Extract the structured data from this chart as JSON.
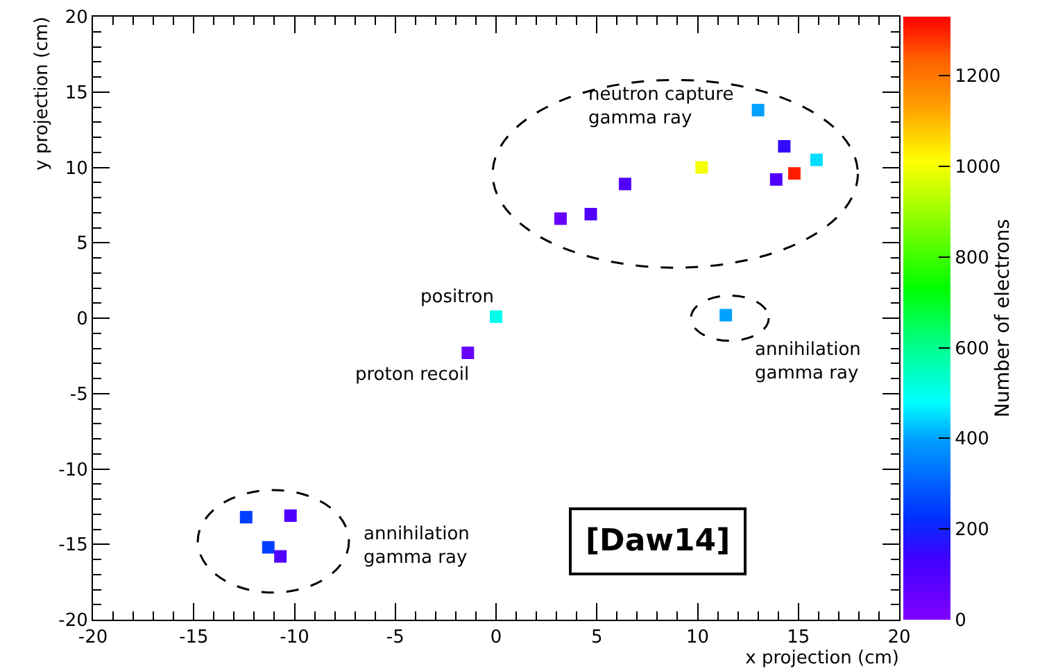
{
  "chart_data": {
    "type": "scatter",
    "xlabel": "x projection (cm)",
    "ylabel": "y projection (cm)",
    "clabel": "Number of electrons",
    "x": [
      0.0,
      -1.4,
      11.4,
      13.0,
      14.3,
      15.9,
      10.2,
      14.8,
      13.9,
      6.4,
      4.7,
      3.2,
      -12.4,
      -10.2,
      -11.3,
      -10.7
    ],
    "values": [
      0.1,
      -2.3,
      0.2,
      13.8,
      11.4,
      10.5,
      10.0,
      9.6,
      9.2,
      8.9,
      6.9,
      6.6,
      -13.2,
      -13.1,
      -15.2,
      -15.8
    ],
    "cvalues": [
      500,
      50,
      400,
      400,
      150,
      450,
      1000,
      1300,
      100,
      100,
      100,
      50,
      250,
      100,
      250,
      100
    ],
    "xlim": [
      -20,
      20
    ],
    "xticks": [
      -20,
      -15,
      -10,
      -5,
      0,
      5,
      10,
      15,
      20
    ],
    "ylim": [
      -20,
      20
    ],
    "yticks": [
      -20,
      -15,
      -10,
      -5,
      0,
      5,
      10,
      15,
      20
    ],
    "clim": [
      0,
      1330
    ],
    "cticks": [
      0,
      200,
      400,
      600,
      800,
      1000,
      1200
    ],
    "marker": "square",
    "grid": false,
    "annotations": [
      "neutron capture\ngamma ray",
      "positron",
      "proton recoil",
      "annihilation\ngamma ray",
      "annihilation\ngamma ray",
      "[Daw14]"
    ]
  }
}
